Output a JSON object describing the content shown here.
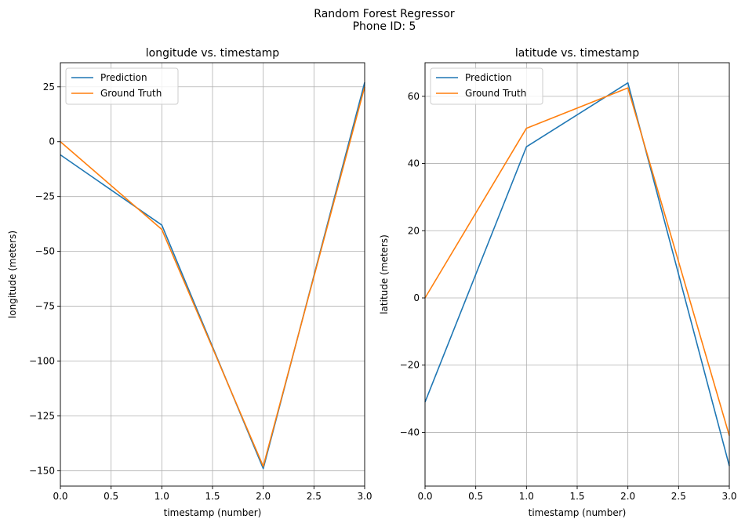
{
  "figure": {
    "suptitle_line1": "Random Forest Regressor",
    "suptitle_line2": "Phone ID: 5"
  },
  "colors": {
    "prediction": "#1f77b4",
    "ground_truth": "#ff7f0e",
    "grid": "#b0b0b0"
  },
  "chart_data": [
    {
      "type": "line",
      "title": "longitude vs. timestamp",
      "xlabel": "timestamp (number)",
      "ylabel": "longitude (meters)",
      "xlim": [
        0,
        3
      ],
      "ylim": [
        -157,
        36
      ],
      "xticks": [
        0.0,
        0.5,
        1.0,
        1.5,
        2.0,
        2.5,
        3.0
      ],
      "xtick_labels": [
        "0.0",
        "0.5",
        "1.0",
        "1.5",
        "2.0",
        "2.5",
        "3.0"
      ],
      "yticks": [
        25,
        0,
        -25,
        -50,
        -75,
        -100,
        -125,
        -150
      ],
      "ytick_labels": [
        "25",
        "0",
        "−25",
        "−50",
        "−75",
        "−100",
        "−125",
        "−150"
      ],
      "grid": true,
      "legend": "upper-left",
      "x": [
        0,
        1,
        2,
        3
      ],
      "series": [
        {
          "name": "Prediction",
          "values": [
            -6,
            -38,
            -149,
            27
          ]
        },
        {
          "name": "Ground Truth",
          "values": [
            0,
            -40,
            -148,
            25
          ]
        }
      ]
    },
    {
      "type": "line",
      "title": "latitude vs. timestamp",
      "xlabel": "timestamp (number)",
      "ylabel": "latitude (meters)",
      "xlim": [
        0,
        3
      ],
      "ylim": [
        -56,
        70
      ],
      "xticks": [
        0.0,
        0.5,
        1.0,
        1.5,
        2.0,
        2.5,
        3.0
      ],
      "xtick_labels": [
        "0.0",
        "0.5",
        "1.0",
        "1.5",
        "2.0",
        "2.5",
        "3.0"
      ],
      "yticks": [
        60,
        40,
        20,
        0,
        -20,
        -40
      ],
      "ytick_labels": [
        "60",
        "40",
        "20",
        "0",
        "−20",
        "−40"
      ],
      "grid": true,
      "legend": "upper-left",
      "x": [
        0,
        1,
        2,
        3
      ],
      "series": [
        {
          "name": "Prediction",
          "values": [
            -31,
            45,
            64,
            -50
          ]
        },
        {
          "name": "Ground Truth",
          "values": [
            0,
            50.5,
            62.5,
            -41
          ]
        }
      ]
    }
  ]
}
